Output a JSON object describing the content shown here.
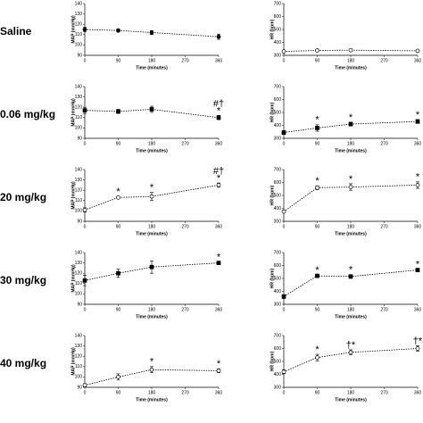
{
  "rows": [
    "Saline",
    "0.06 mg/kg",
    "20 mg/kg",
    "30 mg/kg",
    "40 mg/kg"
  ],
  "chart_data": [
    {
      "type": "line",
      "ylabel": "MAP (mmHg)",
      "xlabel": "Time (minutes)",
      "x": [
        0,
        90,
        180,
        360
      ],
      "xlim": [
        0,
        360
      ],
      "xticks": [
        0,
        90,
        180,
        270,
        360
      ],
      "ylim": [
        90,
        140
      ],
      "yticks": [
        90,
        100,
        110,
        120,
        130,
        140
      ],
      "values": [
        115,
        114,
        112,
        108
      ],
      "errors": [
        2,
        1.5,
        2,
        2.5
      ],
      "marker": "filled-circle",
      "annotations": []
    },
    {
      "type": "line",
      "ylabel": "HR (bpm)",
      "xlabel": "Time (minutes)",
      "x": [
        0,
        90,
        180,
        360
      ],
      "xlim": [
        0,
        360
      ],
      "xticks": [
        0,
        90,
        180,
        270,
        360
      ],
      "ylim": [
        300,
        700
      ],
      "yticks": [
        300,
        400,
        500,
        600,
        700
      ],
      "values": [
        330,
        338,
        340,
        335
      ],
      "errors": [
        8,
        8,
        6,
        8
      ],
      "marker": "open-circle",
      "annotations": []
    },
    {
      "type": "line",
      "ylabel": "MAP (mmHg)",
      "xlabel": "Time (minutes)",
      "x": [
        0,
        90,
        180,
        360
      ],
      "xlim": [
        0,
        360
      ],
      "xticks": [
        0,
        90,
        180,
        270,
        360
      ],
      "ylim": [
        90,
        140
      ],
      "yticks": [
        90,
        100,
        110,
        120,
        130,
        140
      ],
      "values": [
        117,
        116,
        118,
        110
      ],
      "errors": [
        3,
        2,
        3,
        2
      ],
      "marker": "filled-square",
      "annotations": [
        {
          "x": 360,
          "text": "#†"
        },
        {
          "x": 360,
          "text": "*"
        }
      ]
    },
    {
      "type": "line",
      "ylabel": "HR (bpm)",
      "xlabel": "Time (minutes)",
      "x": [
        0,
        90,
        180,
        360
      ],
      "xlim": [
        0,
        360
      ],
      "xticks": [
        0,
        90,
        180,
        270,
        360
      ],
      "ylim": [
        300,
        700
      ],
      "yticks": [
        300,
        400,
        500,
        600,
        700
      ],
      "values": [
        345,
        380,
        410,
        430
      ],
      "errors": [
        15,
        25,
        15,
        15
      ],
      "marker": "filled-square",
      "annotations": [
        {
          "x": 90,
          "text": "*"
        },
        {
          "x": 180,
          "text": "*"
        },
        {
          "x": 360,
          "text": "*"
        }
      ]
    },
    {
      "type": "line",
      "ylabel": "MAP (mmHg)",
      "xlabel": "Time (minutes)",
      "x": [
        0,
        90,
        180,
        360
      ],
      "xlim": [
        0,
        360
      ],
      "xticks": [
        0,
        90,
        180,
        270,
        360
      ],
      "ylim": [
        90,
        140
      ],
      "yticks": [
        90,
        100,
        110,
        120,
        130,
        140
      ],
      "values": [
        101,
        113,
        114,
        125
      ],
      "errors": [
        2,
        1,
        4,
        2
      ],
      "marker": "open-circle",
      "annotations": [
        {
          "x": 90,
          "text": "*"
        },
        {
          "x": 180,
          "text": "*"
        },
        {
          "x": 360,
          "text": "#†"
        },
        {
          "x": 360,
          "text": "*"
        }
      ]
    },
    {
      "type": "line",
      "ylabel": "HR (bpm)",
      "xlabel": "Time (minutes)",
      "x": [
        0,
        90,
        180,
        360
      ],
      "xlim": [
        0,
        360
      ],
      "xticks": [
        0,
        90,
        180,
        270,
        360
      ],
      "ylim": [
        300,
        700
      ],
      "yticks": [
        300,
        400,
        500,
        600,
        700
      ],
      "values": [
        375,
        560,
        565,
        580
      ],
      "errors": [
        8,
        15,
        25,
        25
      ],
      "marker": "open-circle",
      "annotations": [
        {
          "x": 90,
          "text": "*"
        },
        {
          "x": 180,
          "text": "*"
        },
        {
          "x": 360,
          "text": "*"
        }
      ]
    },
    {
      "type": "line",
      "ylabel": "MAP (mmHg)",
      "xlabel": "Time (minutes)",
      "x": [
        0,
        90,
        180,
        360
      ],
      "xlim": [
        0,
        360
      ],
      "xticks": [
        0,
        90,
        180,
        270,
        360
      ],
      "ylim": [
        90,
        140
      ],
      "yticks": [
        90,
        100,
        110,
        120,
        130,
        140
      ],
      "values": [
        113,
        120,
        126,
        130
      ],
      "errors": [
        5,
        4,
        6,
        1
      ],
      "marker": "filled-square",
      "annotations": [
        {
          "x": 360,
          "text": "*"
        }
      ]
    },
    {
      "type": "line",
      "ylabel": "HR (bpm)",
      "xlabel": "Time (minutes)",
      "x": [
        0,
        90,
        180,
        360
      ],
      "xlim": [
        0,
        360
      ],
      "xticks": [
        0,
        90,
        180,
        270,
        360
      ],
      "ylim": [
        300,
        700
      ],
      "yticks": [
        300,
        400,
        500,
        600,
        700
      ],
      "values": [
        360,
        520,
        515,
        565
      ],
      "errors": [
        15,
        8,
        15,
        8
      ],
      "marker": "filled-square",
      "annotations": [
        {
          "x": 90,
          "text": "*"
        },
        {
          "x": 180,
          "text": "*"
        },
        {
          "x": 360,
          "text": "*"
        }
      ]
    },
    {
      "type": "line",
      "ylabel": "MAP (mmHg)",
      "xlabel": "Time (minutes)",
      "x": [
        0,
        90,
        180,
        360
      ],
      "xlim": [
        0,
        360
      ],
      "xticks": [
        0,
        90,
        180,
        270,
        360
      ],
      "ylim": [
        90,
        140
      ],
      "yticks": [
        90,
        100,
        110,
        120,
        130,
        140
      ],
      "values": [
        92,
        100,
        107,
        106
      ],
      "errors": [
        1.5,
        3,
        3,
        2
      ],
      "marker": "open-circle",
      "annotations": [
        {
          "x": 180,
          "text": "*"
        },
        {
          "x": 360,
          "text": "*"
        }
      ]
    },
    {
      "type": "line",
      "ylabel": "HR (bpm)",
      "xlabel": "Time (minutes)",
      "x": [
        0,
        90,
        180,
        360
      ],
      "xlim": [
        0,
        360
      ],
      "xticks": [
        0,
        90,
        180,
        270,
        360
      ],
      "ylim": [
        300,
        700
      ],
      "yticks": [
        300,
        400,
        500,
        600,
        700
      ],
      "values": [
        420,
        530,
        570,
        600
      ],
      "errors": [
        15,
        25,
        20,
        20
      ],
      "marker": "open-circle",
      "annotations": [
        {
          "x": 90,
          "text": "*"
        },
        {
          "x": 180,
          "text": "†*"
        },
        {
          "x": 360,
          "text": "†*"
        }
      ]
    }
  ]
}
